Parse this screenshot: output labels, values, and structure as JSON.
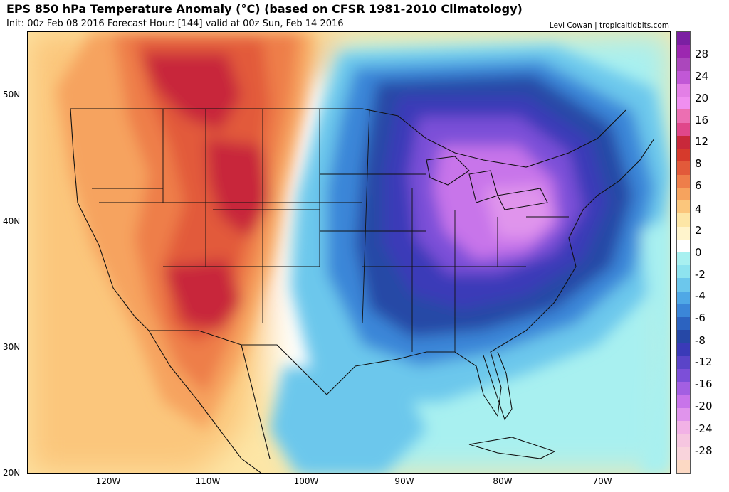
{
  "header": {
    "title": "EPS 850 hPa Temperature Anomaly (°C) (based on CFSR 1981-2010 Climatology)",
    "subtitle": "Init: 00z Feb 08 2016   Forecast Hour: [144]   valid at 00z Sun, Feb 14 2016",
    "credit": "Levi Cowan | tropicaltidbits.com"
  },
  "axes": {
    "lat_labels": [
      "50N",
      "40N",
      "30N",
      "20N"
    ],
    "lon_labels": [
      "120W",
      "110W",
      "100W",
      "90W",
      "80W",
      "70W"
    ]
  },
  "colorbar": {
    "labels": [
      "28",
      "24",
      "20",
      "16",
      "12",
      "8",
      "6",
      "4",
      "2",
      "0",
      "-2",
      "-4",
      "-6",
      "-8",
      "-12",
      "-16",
      "-20",
      "-24",
      "-28"
    ],
    "colors": [
      "#7b1fa2",
      "#9c27b0",
      "#ab47bc",
      "#c158d6",
      "#e37fe6",
      "#f08ff0",
      "#ec6fb2",
      "#e0478a",
      "#c8283a",
      "#d63a2c",
      "#e25a3a",
      "#ee7e4a",
      "#f6a35e",
      "#fbc67c",
      "#fde6a6",
      "#fff4cc",
      "#ffffff",
      "#a8f0f0",
      "#8ee3ef",
      "#6cc7ec",
      "#4fa8e6",
      "#3b86d8",
      "#2c63c0",
      "#2648a6",
      "#3a3ab8",
      "#5a44c8",
      "#7c4fd8",
      "#a35fe2",
      "#c874ea",
      "#e094ec",
      "#f2b2e6",
      "#f6c6e0",
      "#f9d4dc",
      "#fcd9c4"
    ]
  },
  "map": {
    "anomaly_colors": {
      "warm_strong": "#c8283a",
      "warm": "#e25a3a",
      "warm_mid": "#ee7e4a",
      "warm_light": "#f6a35e",
      "warm_pale": "#fbc67c",
      "warm_faint": "#fde6a6",
      "neutral": "#ffffff",
      "cool_faint": "#a8f0f0",
      "cool_light": "#6cc7ec",
      "cool_mid": "#3b86d8",
      "cool": "#2648a6",
      "cold": "#3a3ab8",
      "cold_strong": "#7c4fd8",
      "cold_core": "#c874ea",
      "cold_peak": "#e094ec"
    }
  }
}
